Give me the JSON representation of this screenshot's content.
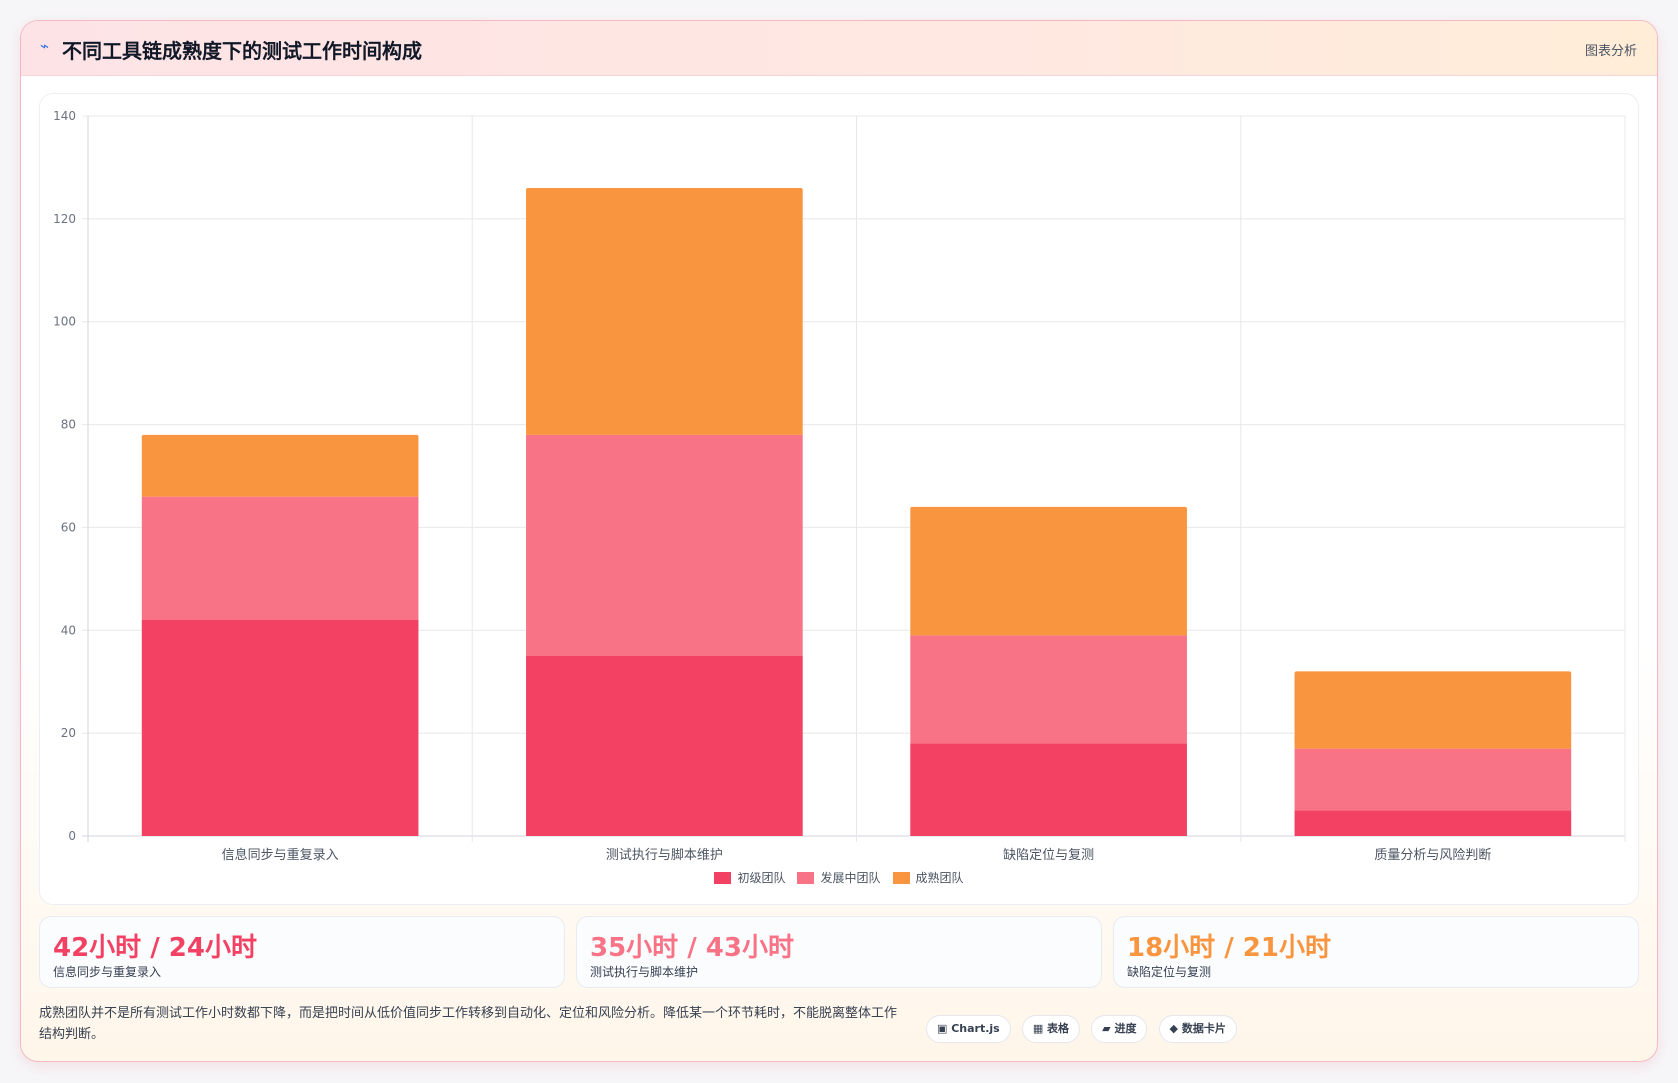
{
  "header": {
    "icon": "bolt-icon",
    "title": "不同工具链成熟度下的测试工作时间构成",
    "tag": "图表分析"
  },
  "chart_data": {
    "type": "bar",
    "stacked": true,
    "categories": [
      "信息同步与重复录入",
      "测试执行与脚本维护",
      "缺陷定位与复测",
      "质量分析与风险判断"
    ],
    "series": [
      {
        "name": "初级团队",
        "color": "#f24163",
        "values": [
          42,
          35,
          18,
          5
        ]
      },
      {
        "name": "发展中团队",
        "color": "#f97386",
        "values": [
          24,
          43,
          21,
          12
        ]
      },
      {
        "name": "成熟团队",
        "color": "#fa953f",
        "values": [
          12,
          48,
          25,
          15
        ]
      }
    ],
    "ylim": [
      0,
      140
    ],
    "yticks": [
      0,
      20,
      40,
      60,
      80,
      100,
      120,
      140
    ],
    "grid": true,
    "legend": "bottom"
  },
  "stats": [
    {
      "value": "42小时 / 24小时",
      "label": "信息同步与重复录入",
      "color": "#f24163"
    },
    {
      "value": "35小时 / 43小时",
      "label": "测试执行与脚本维护",
      "color": "#f97386"
    },
    {
      "value": "18小时 / 21小时",
      "label": "缺陷定位与复测",
      "color": "#fa953f"
    }
  ],
  "footer": {
    "text": "成熟团队并不是所有测试工作小时数都下降，而是把时间从低价值同步工作转移到自动化、定位和风险分析。降低某一个环节耗时，不能脱离整体工作结构判断。",
    "chips": [
      "▣ Chart.js",
      "▦ 表格",
      "▰ 进度",
      "◆ 数据卡片"
    ]
  }
}
